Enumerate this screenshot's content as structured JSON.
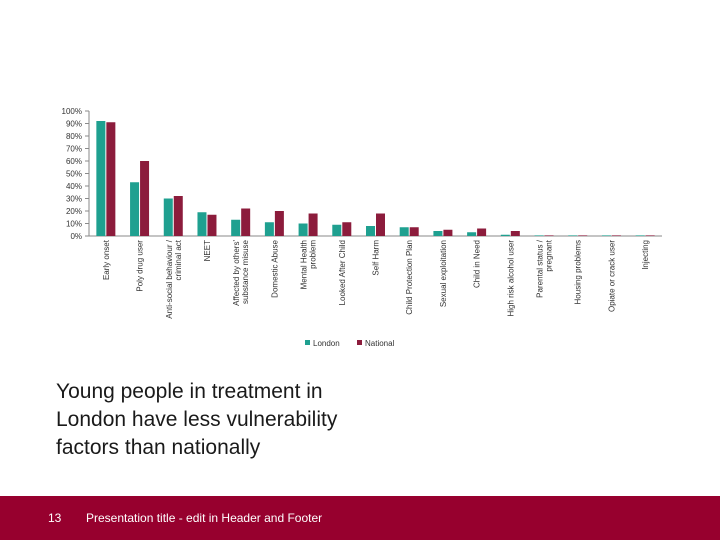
{
  "slide": {
    "title_lines": [
      "Young people in treatment in",
      "London have less vulnerability",
      "factors than nationally"
    ],
    "footer_text": "Presentation title - edit in Header and Footer",
    "page_number": "13"
  },
  "chart_data": {
    "type": "bar",
    "title": "",
    "xlabel": "",
    "ylabel": "",
    "ylim": [
      0,
      100
    ],
    "yticks": [
      "0%",
      "10%",
      "20%",
      "30%",
      "40%",
      "50%",
      "60%",
      "70%",
      "80%",
      "90%",
      "100%"
    ],
    "categories": [
      [
        "Early onset"
      ],
      [
        "Poly drug user"
      ],
      [
        "Anti-social behaviour /",
        "criminal act"
      ],
      [
        "NEET"
      ],
      [
        "Affected by others'",
        "substance misuse"
      ],
      [
        "Domestic Abuse"
      ],
      [
        "Mental Health",
        "problem"
      ],
      [
        "Looked After Child"
      ],
      [
        "Self Harm"
      ],
      [
        "Child Protection Plan"
      ],
      [
        "Sexual exploitation"
      ],
      [
        "Child in Need"
      ],
      [
        "High risk alcohol user"
      ],
      [
        "Parental status /",
        "pregnant"
      ],
      [
        "Housing problems"
      ],
      [
        "Opiate or crack user"
      ],
      [
        "Injecting"
      ]
    ],
    "series": [
      {
        "name": "London",
        "color": "#1fa090",
        "values": [
          92,
          43,
          30,
          19,
          13,
          11,
          10,
          9,
          8,
          7,
          4,
          3,
          1,
          0,
          0,
          0,
          0
        ]
      },
      {
        "name": "National",
        "color": "#8c1c3c",
        "values": [
          91,
          60,
          32,
          17,
          22,
          20,
          18,
          11,
          18,
          7,
          5,
          6,
          4,
          0,
          0,
          0,
          0
        ]
      }
    ],
    "legend_position": "bottom"
  }
}
